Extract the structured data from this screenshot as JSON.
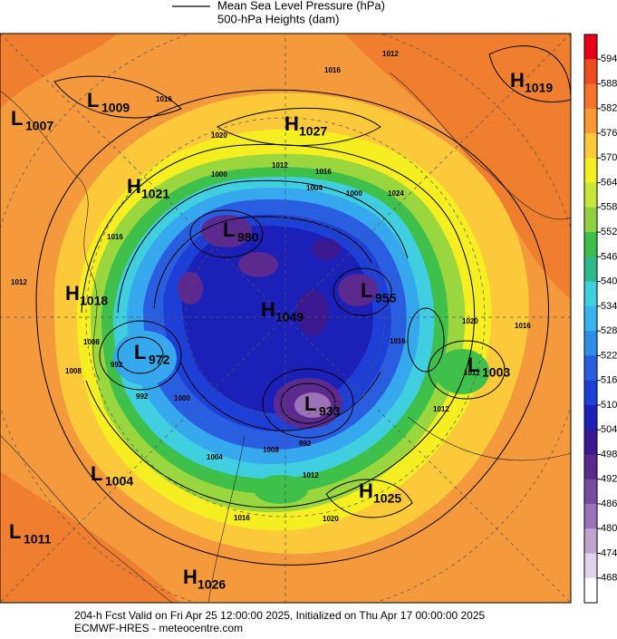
{
  "legend": {
    "pressure_label": "Mean Sea Level Pressure (hPa)",
    "height_label": "500-hPa Heights (dam)"
  },
  "colorbar": {
    "ticks": [
      594,
      588,
      582,
      576,
      570,
      564,
      558,
      552,
      546,
      540,
      534,
      528,
      522,
      516,
      510,
      504,
      498,
      492,
      486,
      480,
      474,
      468
    ],
    "colors": [
      "#e8001a",
      "#f04a20",
      "#f4742a",
      "#f79a34",
      "#fbc93a",
      "#f5ee20",
      "#c8e63a",
      "#8ed040",
      "#3cbf4a",
      "#2fb88a",
      "#3fd0e0",
      "#38b4ee",
      "#2e8fe8",
      "#2a5ee0",
      "#1e3fd6",
      "#1a20b8",
      "#3a1890",
      "#5c2a8f",
      "#7a4aa0",
      "#9c72b8",
      "#bfa4d0",
      "#e0d4ea",
      "#ffffff"
    ]
  },
  "centers": [
    {
      "type": "L",
      "value": 1009
    },
    {
      "type": "L",
      "value": 1007
    },
    {
      "type": "H",
      "value": 1027
    },
    {
      "type": "H",
      "value": 1019
    },
    {
      "type": "H",
      "value": 1021
    },
    {
      "type": "L",
      "value": 980
    },
    {
      "type": "H",
      "value": 1018
    },
    {
      "type": "L",
      "value": 955
    },
    {
      "type": "H",
      "value": 1049
    },
    {
      "type": "L",
      "value": 972
    },
    {
      "type": "L",
      "value": 1003
    },
    {
      "type": "L",
      "value": 933
    },
    {
      "type": "L",
      "value": 1004
    },
    {
      "type": "H",
      "value": 1025
    },
    {
      "type": "L",
      "value": 1011
    },
    {
      "type": "H",
      "value": 1026
    }
  ],
  "contour_labels": [
    1012,
    1016,
    1016,
    1020,
    1012,
    1016,
    1024,
    1000,
    1004,
    1000,
    1016,
    1012,
    1008,
    992,
    1000,
    992,
    1008,
    1012,
    1016,
    1020,
    1016,
    1012,
    1016,
    1020,
    1008,
    1012,
    1004,
    992
  ],
  "footer": {
    "line1": "204-h Fcst Valid on Fri Apr 25 12:00:00 2025, Initialized on Thu Apr 17 00:00:00 2025",
    "line2": "ECMWF-HRES - meteocentre.com"
  }
}
